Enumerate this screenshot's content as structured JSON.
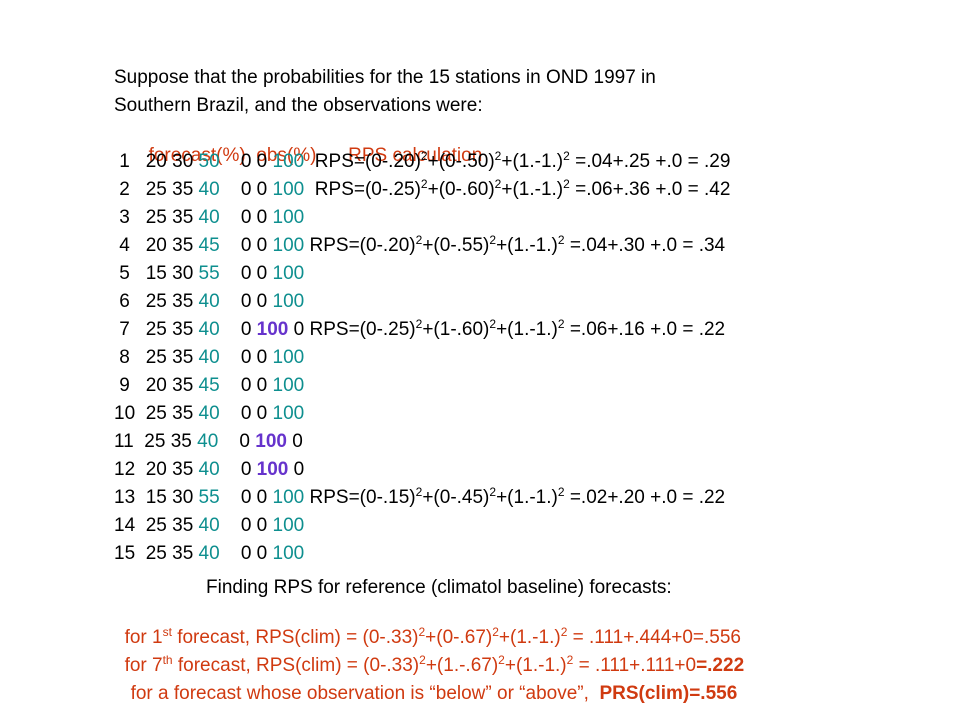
{
  "intro": {
    "line1": "Suppose that the probabilities for the 15 stations in OND 1997 in",
    "line2": "Southern Brazil, and the observations were:"
  },
  "headers": {
    "forecast": "forecast(%)",
    "obs": "obs(%)",
    "rps": "RPS calculation"
  },
  "colors": {
    "teal": "#0e8f8f",
    "purple": "#6633cc",
    "red": "#d03a10"
  },
  "rows": [
    {
      "n": "1",
      "b": "20",
      "nn": "30",
      "a": "50",
      "ob": "0",
      "on": "0",
      "oa": "100",
      "rps": {
        "t1": "RPS=(0-.20)",
        "t2": "+(0-.50)",
        "t3": "+(1.-1.)",
        "t4": " =.04+.25 +.0 = .29"
      }
    },
    {
      "n": "2",
      "b": "25",
      "nn": "35",
      "a": "40",
      "ob": "0",
      "on": "0",
      "oa": "100",
      "rps": {
        "t1": "RPS=(0-.25)",
        "t2": "+(0-.60)",
        "t3": "+(1.-1.)",
        "t4": " =.06+.36 +.0 = .42"
      }
    },
    {
      "n": "3",
      "b": "25",
      "nn": "35",
      "a": "40",
      "ob": "0",
      "on": "0",
      "oa": "100"
    },
    {
      "n": "4",
      "b": "20",
      "nn": "35",
      "a": "45",
      "ob": "0",
      "on": "0",
      "oa": "100",
      "rps": {
        "t1": "RPS=(0-.20)",
        "t2": "+(0-.55)",
        "t3": "+(1.-1.)",
        "t4": " =.04+.30 +.0 = .34"
      }
    },
    {
      "n": "5",
      "b": "15",
      "nn": "30",
      "a": "55",
      "ob": "0",
      "on": "0",
      "oa": "100"
    },
    {
      "n": "6",
      "b": "25",
      "nn": "35",
      "a": "40",
      "ob": "0",
      "on": "0",
      "oa": "100"
    },
    {
      "n": "7",
      "b": "25",
      "nn": "35",
      "a": "40",
      "ob": "0",
      "on": "100",
      "oa": "0",
      "rps": {
        "t1": "RPS=(0-.25)",
        "t2": "+(1-.60)",
        "t3": "+(1.-1.)",
        "t4": " =.06+.16 +.0 = .22"
      }
    },
    {
      "n": "8",
      "b": "25",
      "nn": "35",
      "a": "40",
      "ob": "0",
      "on": "0",
      "oa": "100"
    },
    {
      "n": "9",
      "b": "20",
      "nn": "35",
      "a": "45",
      "ob": "0",
      "on": "0",
      "oa": "100"
    },
    {
      "n": "10",
      "b": "25",
      "nn": "35",
      "a": "40",
      "ob": "0",
      "on": "0",
      "oa": "100"
    },
    {
      "n": "11",
      "b": "25",
      "nn": "35",
      "a": "40",
      "ob": "0",
      "on": "100",
      "oa": "0"
    },
    {
      "n": "12",
      "b": "20",
      "nn": "35",
      "a": "40",
      "ob": "0",
      "on": "100",
      "oa": "0"
    },
    {
      "n": "13",
      "b": "15",
      "nn": "30",
      "a": "55",
      "ob": "0",
      "on": "0",
      "oa": "100",
      "rps": {
        "t1": "RPS=(0-.15)",
        "t2": "+(0-.45)",
        "t3": "+(1.-1.)",
        "t4": " =.02+.20 +.0 = .22"
      }
    },
    {
      "n": "14",
      "b": "25",
      "nn": "35",
      "a": "40",
      "ob": "0",
      "on": "0",
      "oa": "100"
    },
    {
      "n": "15",
      "b": "25",
      "nn": "35",
      "a": "40",
      "ob": "0",
      "on": "0",
      "oa": "100"
    }
  ],
  "exponent": "2",
  "finding": "Finding RPS for reference (climatol baseline) forecasts:",
  "clim1": {
    "p1": "for 1",
    "sup": "st",
    "p2": " forecast, RPS(clim) = (0-.33)",
    "p3": "+(0-.67)",
    "p4": "+(1.-1.)",
    "p5": " = .111+.444+0=.556"
  },
  "clim7": {
    "p1": "for 7",
    "sup": "th",
    "p2": " forecast, RPS(clim) = (0-.33)",
    "p3": "+(1.-.67)",
    "p4": "+(1.-1.)",
    "p5": " = .111+.111+0",
    "p6": "=.222"
  },
  "clim_other": {
    "p1": "for a forecast whose observation is “below” or “above”,  ",
    "p2": "PRS(clim)=.556"
  }
}
